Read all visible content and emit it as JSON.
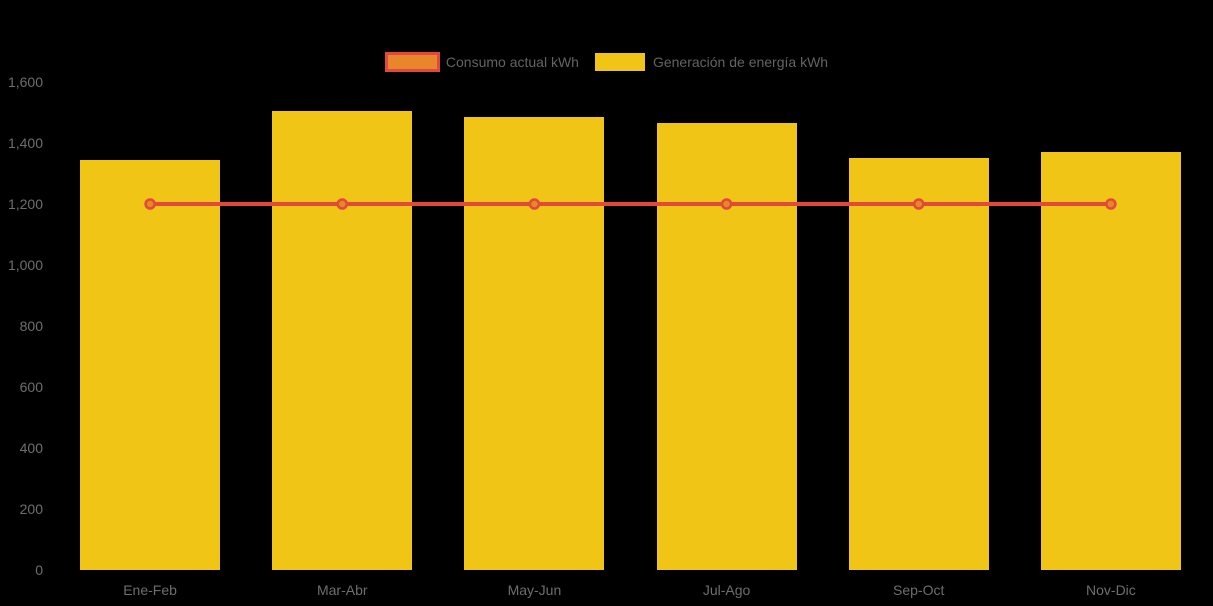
{
  "chart": {
    "background": "#000000",
    "text_color": "#6E6E6E"
  },
  "chart_data": {
    "type": "bar",
    "title": "",
    "xlabel": "",
    "ylabel": "",
    "categories": [
      "Ene-Feb",
      "Mar-Abr",
      "May-Jun",
      "Jul-Ago",
      "Sep-Oct",
      "Nov-Dic"
    ],
    "series": [
      {
        "name": "Consumo actual kWh",
        "type": "line",
        "values": [
          1200,
          1200,
          1200,
          1200,
          1200,
          1200
        ],
        "color": "#E2493B",
        "marker_fill": "#E8862C"
      },
      {
        "name": "Generación de energía kWh",
        "type": "bar",
        "values": [
          1345,
          1505,
          1485,
          1465,
          1350,
          1370
        ],
        "color": "#F0C516"
      }
    ],
    "ylim": [
      0,
      1600
    ],
    "yticks": [
      0,
      200,
      400,
      600,
      800,
      1000,
      1200,
      1400,
      1600
    ],
    "ytick_labels": [
      "0",
      "200",
      "400",
      "600",
      "800",
      "1,000",
      "1,200",
      "1,400",
      "1,600"
    ],
    "grid": false,
    "legend_position": "top-center",
    "background": "#000000"
  }
}
